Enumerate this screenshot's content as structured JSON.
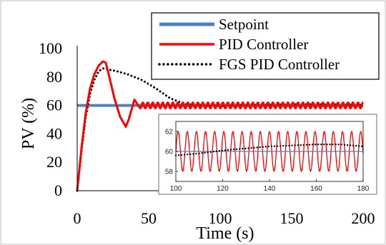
{
  "chart_data": [
    {
      "type": "line",
      "xlabel": "Time (s)",
      "ylabel": "PV (%)",
      "xlim": [
        0,
        200
      ],
      "ylim": [
        0,
        100
      ],
      "xticks": [
        "0",
        "50",
        "100",
        "150",
        "200"
      ],
      "yticks": [
        "0",
        "20",
        "40",
        "60",
        "80",
        "100"
      ],
      "grid": false,
      "legend": "top-right",
      "series": [
        {
          "name": "Setpoint",
          "color": "#4f81bd",
          "style": "solid",
          "x": [
            0,
            200
          ],
          "y": [
            60,
            60
          ]
        },
        {
          "name": "PID Controller",
          "color": "#ff0000",
          "style": "solid",
          "x": [
            0,
            3,
            6,
            9,
            12,
            15,
            18,
            20,
            22,
            26,
            30,
            34,
            36,
            40,
            44,
            48,
            52,
            56,
            60,
            80,
            100,
            120,
            140,
            160,
            180,
            200
          ],
          "y": [
            0,
            30,
            55,
            72,
            82,
            88,
            91,
            90,
            82,
            65,
            52,
            45,
            50,
            64,
            58,
            62,
            59,
            61.5,
            59,
            61.5,
            59,
            61.5,
            59,
            61.5,
            59,
            61.5
          ],
          "oscillation": {
            "from": 45,
            "center": 60,
            "amplitude": 2,
            "period": 3.5
          }
        },
        {
          "name": "FGS PID Controller",
          "color": "#000000",
          "style": "dotted",
          "x": [
            0,
            3,
            6,
            9,
            12,
            15,
            18,
            20,
            23,
            28,
            35,
            45,
            55,
            65,
            75,
            85,
            100,
            120,
            140,
            160,
            180,
            200
          ],
          "y": [
            0,
            28,
            52,
            68,
            78,
            84,
            86,
            86,
            85,
            84,
            82,
            78,
            72,
            65,
            61,
            60,
            59.6,
            60.2,
            60.6,
            60.8,
            60.7,
            60.3
          ]
        }
      ]
    },
    {
      "type": "line",
      "placement": "inset",
      "xlim": [
        100,
        180
      ],
      "ylim": [
        57,
        63
      ],
      "xticks": [
        "100",
        "120",
        "140",
        "160",
        "180"
      ],
      "yticks": [
        "58",
        "60",
        "62"
      ],
      "series": [
        {
          "color": "#ff0000",
          "style": "solid",
          "x": [
            100,
            180
          ],
          "y": [
            60,
            60
          ],
          "oscillation": {
            "from": 100,
            "center": 60,
            "amplitude": 2,
            "period": 3.9
          }
        },
        {
          "color": "#4f81bd",
          "style": "solid",
          "x": [
            100,
            180
          ],
          "y": [
            60,
            60
          ]
        },
        {
          "color": "#000000",
          "style": "dotted",
          "x": [
            100,
            110,
            120,
            130,
            140,
            150,
            160,
            170,
            180
          ],
          "y": [
            59.6,
            59.8,
            60.1,
            60.3,
            60.5,
            60.6,
            60.7,
            60.7,
            60.5
          ]
        }
      ]
    }
  ]
}
